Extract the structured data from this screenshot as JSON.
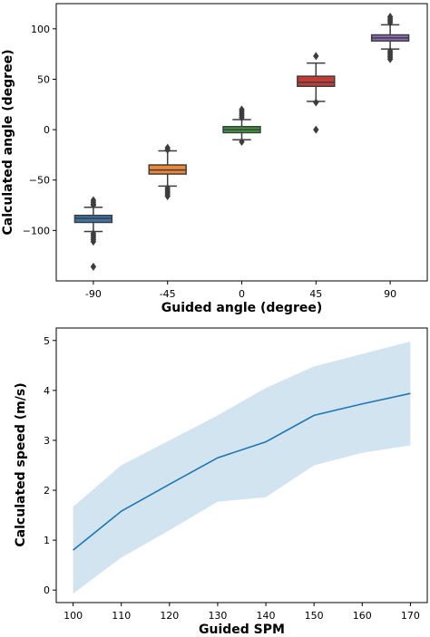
{
  "chart_data": [
    {
      "type": "box",
      "xlabel": "Guided angle (degree)",
      "ylabel": "Calculated angle (degree)",
      "ylim": [
        -150,
        125
      ],
      "yticks": [
        -100,
        -50,
        0,
        50,
        100
      ],
      "ytick_labels": [
        "−100",
        "−50",
        "0",
        "50",
        "100"
      ],
      "categories": [
        "-90",
        "-45",
        "0",
        "45",
        "90"
      ],
      "colors": [
        "#3a75af",
        "#ef8636",
        "#3e9c3e",
        "#c53a32",
        "#8d6bb8"
      ],
      "boxes": [
        {
          "category": "-90",
          "whislo": -101,
          "q1": -92,
          "med": -88,
          "q3": -85,
          "whishi": -77,
          "outliers": [
            -70,
            -72,
            -74,
            -75,
            -103,
            -105,
            -107,
            -109,
            -111,
            -136
          ]
        },
        {
          "category": "-45",
          "whislo": -56,
          "q1": -44,
          "med": -40,
          "q3": -35,
          "whishi": -21,
          "outliers": [
            -18,
            -20,
            -58,
            -60,
            -62,
            -64,
            -66
          ]
        },
        {
          "category": "0",
          "whislo": -10,
          "q1": -3,
          "med": 0,
          "q3": 3,
          "whishi": 10,
          "outliers": [
            12,
            14,
            16,
            18,
            20,
            -12
          ]
        },
        {
          "category": "45",
          "whislo": 28,
          "q1": 43,
          "med": 47,
          "q3": 53,
          "whishi": 66,
          "outliers": [
            73,
            27,
            0
          ]
        },
        {
          "category": "90",
          "whislo": 80,
          "q1": 88,
          "med": 91,
          "q3": 94,
          "whishi": 104,
          "outliers": [
            106,
            108,
            110,
            112,
            78,
            76,
            74,
            72,
            70
          ]
        }
      ]
    },
    {
      "type": "line",
      "xlabel": "Guided SPM",
      "ylabel": "Calculated speed (m/s)",
      "xlim": [
        96.5,
        173.5
      ],
      "ylim": [
        -0.25,
        5.25
      ],
      "xticks": [
        100,
        110,
        120,
        130,
        140,
        150,
        160,
        170
      ],
      "xtick_labels": [
        "100",
        "110",
        "120",
        "130",
        "140",
        "150",
        "160",
        "170"
      ],
      "yticks": [
        0,
        1,
        2,
        3,
        4,
        5
      ],
      "ytick_labels": [
        "0",
        "1",
        "2",
        "3",
        "4",
        "5"
      ],
      "line_color": "#1f77b4",
      "band_color": "#1f77b4",
      "x": [
        100,
        110,
        120,
        130,
        140,
        150,
        160,
        170
      ],
      "y": [
        0.8,
        1.58,
        2.12,
        2.65,
        2.97,
        3.5,
        3.73,
        3.94
      ],
      "upper": [
        1.67,
        2.5,
        3.0,
        3.5,
        4.05,
        4.48,
        4.73,
        4.98
      ],
      "lower": [
        -0.07,
        0.65,
        1.2,
        1.77,
        1.86,
        2.5,
        2.75,
        2.9
      ]
    }
  ]
}
